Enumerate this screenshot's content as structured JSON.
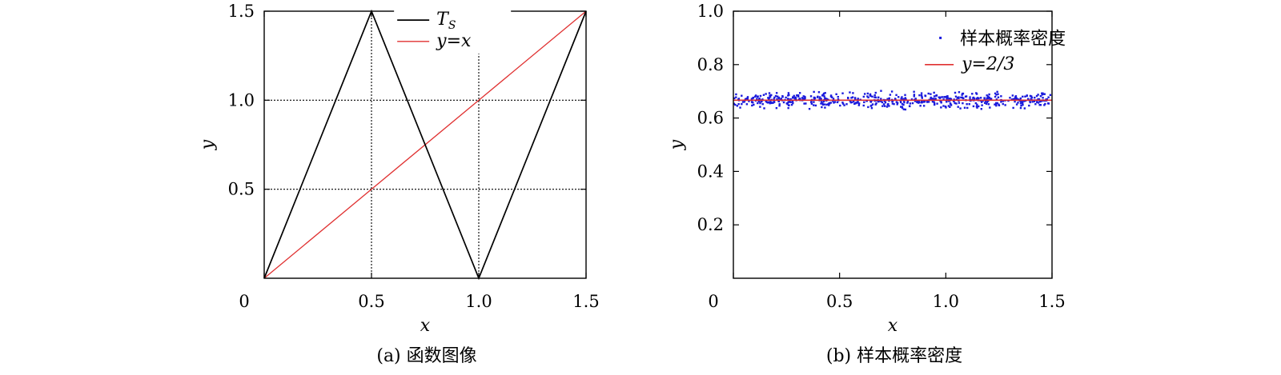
{
  "chart_data": [
    {
      "type": "line",
      "caption": "(a) 函数图像",
      "xlabel": "x",
      "ylabel": "y",
      "xlim": [
        0,
        1.5
      ],
      "ylim": [
        0,
        1.5
      ],
      "x_ticks": [
        0,
        0.5,
        1.0,
        1.5
      ],
      "x_tick_labels": [
        "0",
        "0.5",
        "1.0",
        "1.5"
      ],
      "y_ticks": [
        0.5,
        1.0,
        1.5
      ],
      "y_tick_labels": [
        "0.5",
        "1.0",
        "1.5"
      ],
      "grid": true,
      "legend_position": "top-center",
      "series": [
        {
          "name": "T_S",
          "legend_main": "T",
          "legend_sub": "S",
          "color": "#000000",
          "x": [
            0,
            0.5,
            1.0,
            1.5
          ],
          "y": [
            0,
            1.5,
            0,
            1.5
          ]
        },
        {
          "name": "y=x",
          "legend_label": "y=x",
          "color": "#e03030",
          "x": [
            0,
            1.5
          ],
          "y": [
            0,
            1.5
          ]
        }
      ]
    },
    {
      "type": "scatter",
      "caption": "(b) 样本概率密度",
      "xlabel": "x",
      "ylabel": "y",
      "xlim": [
        0,
        1.5
      ],
      "ylim": [
        0,
        1.0
      ],
      "x_ticks": [
        0,
        0.5,
        1.0,
        1.5
      ],
      "x_tick_labels": [
        "0",
        "0.5",
        "1.0",
        "1.5"
      ],
      "y_ticks": [
        0.2,
        0.4,
        0.6,
        0.8,
        1.0
      ],
      "y_tick_labels": [
        "0.2",
        "0.4",
        "0.6",
        "0.8",
        "1.0"
      ],
      "grid": false,
      "legend_position": "top-right",
      "series": [
        {
          "name": "样本概率密度",
          "legend_label": "样本概率密度",
          "color": "#1a1adc",
          "kind": "points",
          "point_count": 600,
          "x_range": [
            0,
            1.5
          ],
          "y_center": 0.6667,
          "y_spread": 0.03
        },
        {
          "name": "y=2/3",
          "legend_label": "y=2/3",
          "color": "#e03030",
          "kind": "line",
          "x": [
            0,
            1.5
          ],
          "y": [
            0.6667,
            0.6667
          ]
        }
      ]
    }
  ]
}
